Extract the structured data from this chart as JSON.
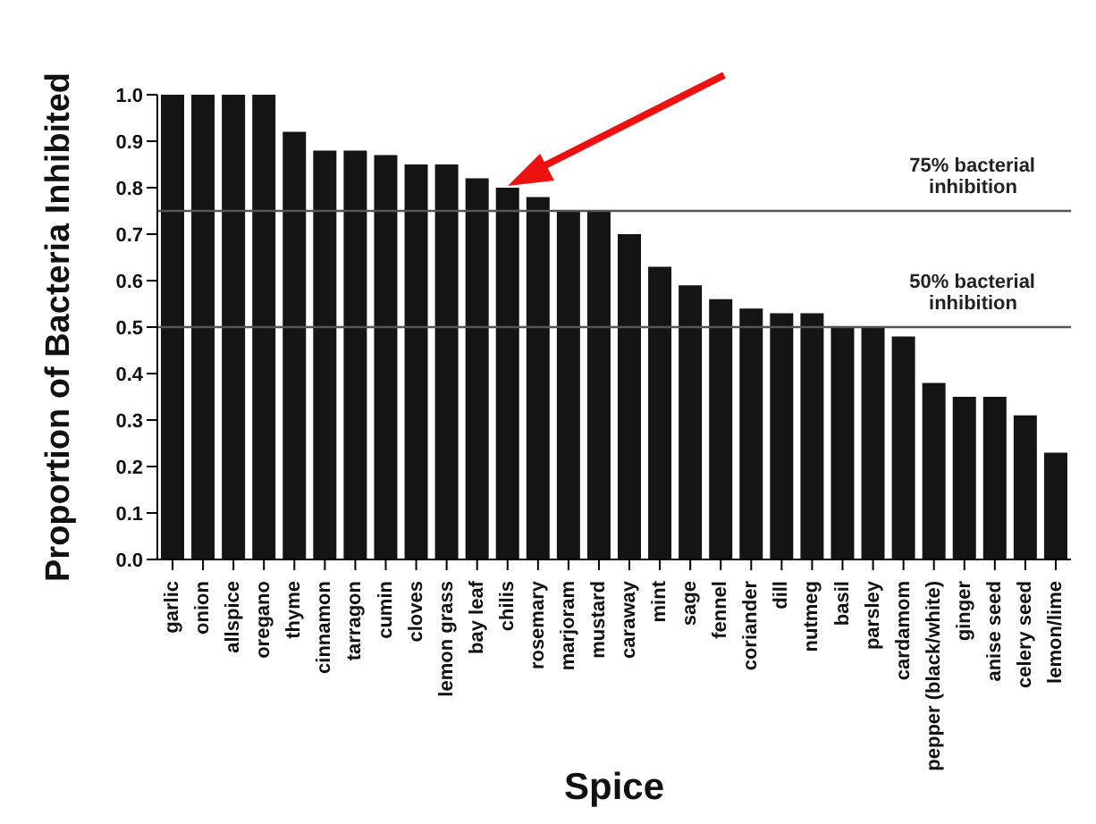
{
  "chart_data": {
    "type": "bar",
    "xlabel": "Spice",
    "ylabel": "Proportion of Bacteria Inhibited",
    "categories": [
      "garlic",
      "onion",
      "allspice",
      "oregano",
      "thyme",
      "cinnamon",
      "tarragon",
      "cumin",
      "cloves",
      "lemon grass",
      "bay leaf",
      "chilis",
      "rosemary",
      "marjoram",
      "mustard",
      "caraway",
      "mint",
      "sage",
      "fennel",
      "coriander",
      "dill",
      "nutmeg",
      "basil",
      "parsley",
      "cardamom",
      "pepper (black/white)",
      "ginger",
      "anise seed",
      "celery seed",
      "lemon/lime"
    ],
    "values": [
      1,
      1,
      1,
      1,
      0.92,
      0.88,
      0.88,
      0.87,
      0.85,
      0.85,
      0.82,
      0.8,
      0.78,
      0.75,
      0.75,
      0.7,
      0.63,
      0.59,
      0.56,
      0.54,
      0.53,
      0.53,
      0.5,
      0.5,
      0.48,
      0.38,
      0.35,
      0.35,
      0.31,
      0.23
    ],
    "color": "#141414",
    "ylim": [
      0,
      1
    ],
    "yticks": [
      {
        "value": 0,
        "label": "0.0"
      },
      {
        "value": 0.1,
        "label": "0.1"
      },
      {
        "value": 0.2,
        "label": "0.2"
      },
      {
        "value": 0.3,
        "label": "0.3"
      },
      {
        "value": 0.4,
        "label": "0.4"
      },
      {
        "value": 0.5,
        "label": "0.5"
      },
      {
        "value": 0.6,
        "label": "0.6"
      },
      {
        "value": 0.7,
        "label": "0.7"
      },
      {
        "value": 0.8,
        "label": "0.8"
      },
      {
        "value": 0.9,
        "label": "0.9"
      },
      {
        "value": 1,
        "label": "1.0"
      }
    ],
    "ref_lines": [
      {
        "axis": "y",
        "value": 0.75,
        "label": "75% bacterial inhibition",
        "color": "#555555"
      },
      {
        "axis": "y",
        "value": 0.5,
        "label": "50% bacterial inhibition",
        "color": "#555555"
      }
    ]
  }
}
